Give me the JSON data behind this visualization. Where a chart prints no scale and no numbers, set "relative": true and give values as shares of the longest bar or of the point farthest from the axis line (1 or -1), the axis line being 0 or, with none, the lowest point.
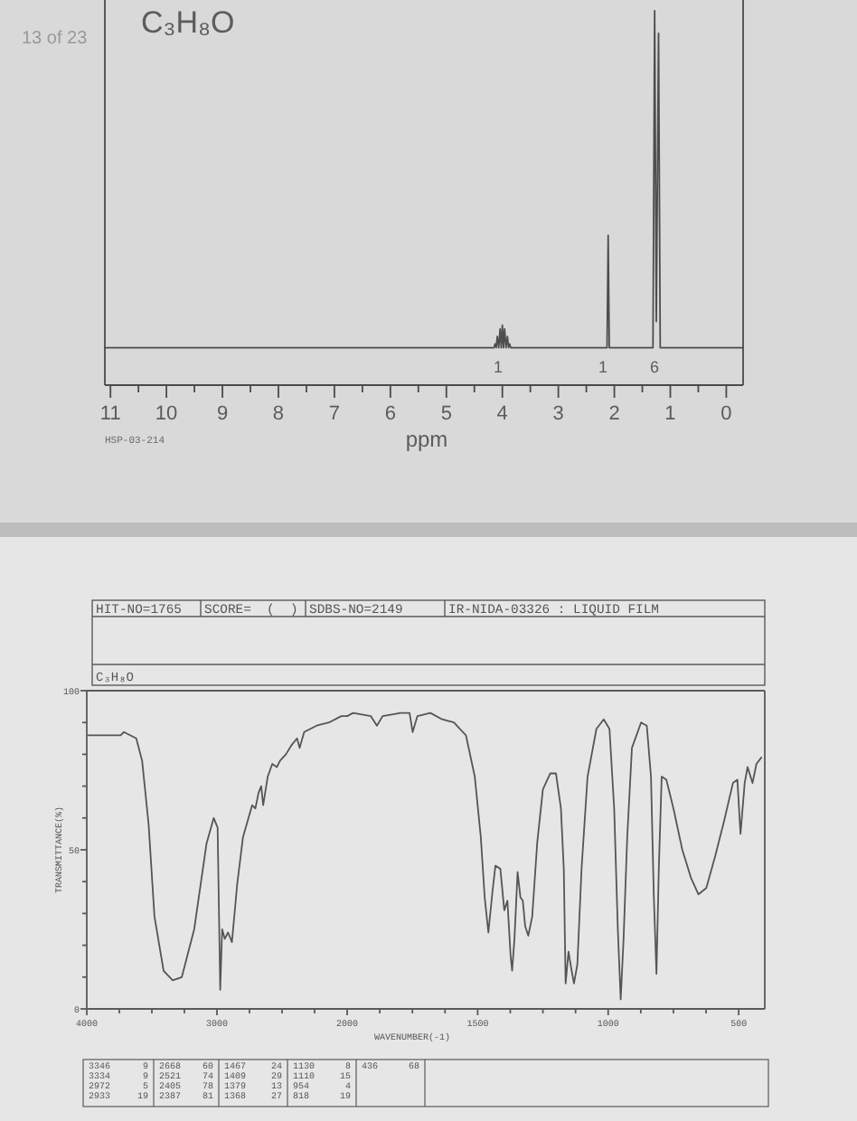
{
  "chart_data": [
    {
      "type": "line",
      "title": "C₃H₈O",
      "xlabel": "ppm",
      "relative": true,
      "color": "#4d4d4d",
      "x": [
        11.1,
        4.15,
        4.13,
        4.11,
        4.09,
        4.065,
        4.04,
        4.02,
        4.0,
        3.98,
        3.96,
        3.935,
        3.91,
        3.89,
        3.87,
        3.85,
        2.13,
        2.11,
        2.09,
        1.31,
        1.28,
        1.25,
        1.21,
        1.18,
        -0.3
      ],
      "values": [
        0.1,
        0.1,
        0.11,
        0.1,
        0.13,
        0.1,
        0.15,
        0.1,
        0.16,
        0.1,
        0.15,
        0.1,
        0.13,
        0.1,
        0.11,
        0.1,
        0.1,
        0.4,
        0.1,
        0.1,
        1,
        0.17,
        0.94,
        0.1,
        0.1
      ],
      "xlim": [
        11.1,
        -0.3
      ],
      "xticks": [
        11,
        {
          "value": 10.5,
          "label": null
        },
        10,
        {
          "value": 9.5,
          "label": null
        },
        9,
        {
          "value": 8.5,
          "label": null
        },
        8,
        {
          "value": 7.5,
          "label": null
        },
        7,
        {
          "value": 6.5,
          "label": null
        },
        6,
        {
          "value": 5.5,
          "label": null
        },
        5,
        {
          "value": 4.5,
          "label": null
        },
        4,
        {
          "value": 3.5,
          "label": null
        },
        3,
        {
          "value": 2.5,
          "label": null
        },
        2,
        {
          "value": 1.5,
          "label": null
        },
        1,
        {
          "value": 0.5,
          "label": null
        },
        0
      ],
      "annotations": [
        "13 of 23",
        "HSP-03-214",
        "1",
        "1",
        "6"
      ]
    },
    {
      "type": "line",
      "title": "C₃H₈O",
      "ylabel": "TRANSMITTANCE(%)",
      "color": "#555555",
      "x": [
        3990,
        3740,
        3715,
        3620,
        3575,
        3525,
        3480,
        3410,
        3340,
        3270,
        3175,
        3080,
        3025,
        2995,
        2975,
        2960,
        2940,
        2915,
        2885,
        2845,
        2800,
        2730,
        2705,
        2680,
        2660,
        2645,
        2610,
        2575,
        2540,
        2515,
        2470,
        2425,
        2385,
        2365,
        2330,
        2235,
        2140,
        2045,
        2000
      ],
      "values": [
        86,
        86,
        87,
        85,
        78,
        58,
        29,
        12,
        9,
        10,
        25,
        52,
        60,
        57,
        6,
        25,
        22,
        24,
        21,
        39,
        54,
        64,
        63,
        68,
        70,
        64,
        73,
        77,
        76,
        78,
        80,
        83,
        85,
        82,
        87,
        89,
        90,
        92,
        92
      ],
      "xlim": [
        4000,
        2000
      ],
      "xticks": [
        4000,
        {
          "value": 3750,
          "label": null
        },
        {
          "value": 3500,
          "label": null
        },
        {
          "value": 3250,
          "label": null
        },
        3000,
        {
          "value": 2750,
          "label": null
        },
        {
          "value": 2500,
          "label": null
        },
        {
          "value": 2250,
          "label": null
        },
        2000
      ],
      "ylim": [
        0,
        100
      ],
      "yticks": [
        0,
        {
          "value": 10,
          "label": null
        },
        {
          "value": 20,
          "label": null
        },
        {
          "value": 30,
          "label": null
        },
        {
          "value": 40,
          "label": null
        },
        50,
        {
          "value": 60,
          "label": null
        },
        {
          "value": 70,
          "label": null
        },
        {
          "value": 80,
          "label": null
        },
        {
          "value": 90,
          "label": null
        },
        100
      ],
      "annotations": [
        "HIT-NO=1765",
        "SCORE=  (  )",
        "SDBS-NO=2149",
        "IR-NIDA-03326 : LIQUID FILM",
        "3346 9",
        "3334 9",
        "2972 5",
        "2933 19",
        "2668 60",
        "2521 74",
        "2405 78",
        "2387 81",
        "1467 24",
        "1409 29",
        "1379 13",
        "1368 27",
        "1130 8",
        "1110 15",
        "954 4",
        "818 19",
        "436 68"
      ]
    },
    {
      "type": "line",
      "xlabel": "WAVENUMBER(-1)",
      "color": "#555555",
      "tick_labels": "x",
      "x": [
        2000,
        1977,
        1909,
        1886,
        1864,
        1795,
        1761,
        1749,
        1731,
        1681,
        1636,
        1591,
        1545,
        1511,
        1488,
        1473,
        1459,
        1443,
        1432,
        1413,
        1398,
        1386,
        1374,
        1368,
        1359,
        1347,
        1336,
        1327,
        1318,
        1306,
        1291,
        1272,
        1250,
        1222,
        1200,
        1181,
        1170,
        1163,
        1152,
        1140,
        1131,
        1118,
        1102,
        1079,
        1045,
        1017,
        995,
        977,
        963,
        952,
        941,
        927,
        909,
        874,
        852,
        836,
        825,
        815,
        806,
        795,
        777,
        750,
        716,
        682,
        654,
        624,
        590,
        556,
        522,
        505,
        493,
        477,
        466,
        447,
        432,
        413
      ],
      "values": [
        92,
        93,
        92,
        89,
        92,
        93,
        93,
        87,
        92,
        93,
        91,
        90,
        86,
        73,
        54,
        35,
        24,
        37,
        45,
        44,
        31,
        34,
        17,
        12,
        22,
        43,
        35,
        34,
        26,
        23,
        29,
        52,
        69,
        74,
        74,
        63,
        44,
        8,
        18,
        12,
        8,
        14,
        44,
        73,
        88,
        91,
        88,
        63,
        25,
        3,
        22,
        54,
        82,
        90,
        89,
        73,
        35,
        11,
        44,
        73,
        72,
        63,
        50,
        41,
        36,
        38,
        48,
        59,
        71,
        72,
        55,
        71,
        76,
        71,
        77,
        79
      ],
      "xlim": [
        2000,
        400
      ],
      "xticks": [
        {
          "value": 1875,
          "label": null
        },
        {
          "value": 1750,
          "label": null
        },
        {
          "value": 1625,
          "label": null
        },
        1500,
        {
          "value": 1375,
          "label": null
        },
        {
          "value": 1250,
          "label": null
        },
        {
          "value": 1125,
          "label": null
        },
        1000,
        {
          "value": 875,
          "label": null
        },
        {
          "value": 750,
          "label": null
        },
        {
          "value": 625,
          "label": null
        },
        500
      ],
      "ylim": [
        0,
        100
      ]
    }
  ]
}
